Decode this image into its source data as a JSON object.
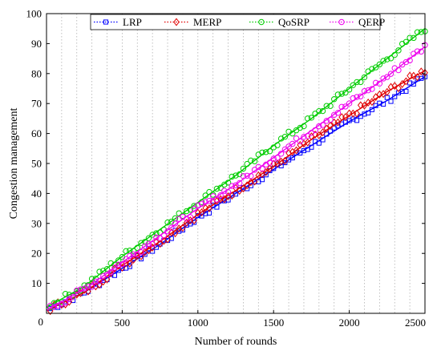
{
  "chart_data": {
    "type": "line",
    "title": "",
    "xlabel": "Number of rounds",
    "ylabel": "Congestion management",
    "xlim": [
      0,
      2500
    ],
    "ylim": [
      0,
      100
    ],
    "xticks": [
      500,
      1000,
      1500,
      2000,
      2500
    ],
    "yticks": [
      0,
      10,
      20,
      30,
      40,
      50,
      60,
      70,
      80,
      90,
      100
    ],
    "grid": "vertical dotted",
    "legend": "top, horizontal",
    "series": [
      {
        "name": "LRP",
        "color": "#0000ff",
        "marker": "square",
        "x": [
          0,
          250,
          500,
          750,
          1000,
          1250,
          1500,
          1750,
          2000,
          2250,
          2500
        ],
        "y": [
          1,
          7,
          15,
          23,
          32,
          40,
          48,
          56,
          64,
          71,
          79
        ]
      },
      {
        "name": "MERP",
        "color": "#e00000",
        "marker": "diamond",
        "x": [
          0,
          250,
          500,
          750,
          1000,
          1250,
          1500,
          1750,
          2000,
          2250,
          2500
        ],
        "y": [
          1,
          7,
          16,
          24,
          33,
          41,
          49,
          58,
          66,
          74,
          81
        ]
      },
      {
        "name": "QoSRP",
        "color": "#00cc00",
        "marker": "circle",
        "x": [
          0,
          250,
          500,
          750,
          1000,
          1250,
          1500,
          1750,
          2000,
          2250,
          2500
        ],
        "y": [
          2,
          9,
          19,
          28,
          37,
          46,
          56,
          65,
          75,
          85,
          95
        ]
      },
      {
        "name": "QERP",
        "color": "#ee00ee",
        "marker": "circle",
        "x": [
          0,
          250,
          500,
          750,
          1000,
          1250,
          1500,
          1750,
          2000,
          2250,
          2500
        ],
        "y": [
          1,
          8,
          17,
          26,
          35,
          43,
          52,
          61,
          70,
          79,
          89
        ]
      }
    ]
  }
}
